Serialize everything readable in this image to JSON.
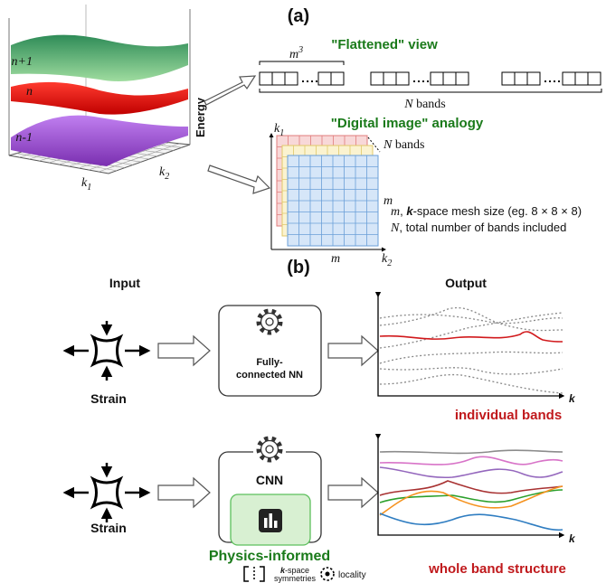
{
  "panel_a": {
    "label": "(a)",
    "surface": {
      "levels": [
        "n+1",
        "n",
        "n-1"
      ],
      "axis_energy": "Energy",
      "k1": [
        "k",
        "1"
      ],
      "k2": [
        "k",
        "2"
      ]
    },
    "flattened": {
      "title": "\"Flattened\" view",
      "block_size": [
        "m",
        "3"
      ],
      "n_bands": [
        "N",
        " bands"
      ]
    },
    "digital": {
      "title": "\"Digital image\" analogy",
      "k1": [
        "k",
        "1"
      ],
      "k2": [
        "k",
        "2"
      ],
      "n_bands": [
        "N",
        " bands"
      ],
      "m_side": "m",
      "m_bottom": "m",
      "legend": [
        [
          "m",
          ", ",
          "k",
          "-space mesh size (eg. 8 × 8 × 8)"
        ],
        [
          "N",
          ", total number of bands included"
        ]
      ]
    }
  },
  "panel_b": {
    "label": "(b)",
    "input": "Input",
    "output": "Output",
    "rows": [
      {
        "strain": "Strain",
        "model": [
          "Fully-",
          "connected NN"
        ],
        "k": "k",
        "result": "individual bands"
      },
      {
        "strain": "Strain",
        "model": [
          "CNN"
        ],
        "physics": "Physics-informed",
        "symmetry": [
          "k",
          "-space",
          "symmetries"
        ],
        "locality": "locality",
        "k": "k",
        "result": "whole band structure"
      }
    ]
  }
}
